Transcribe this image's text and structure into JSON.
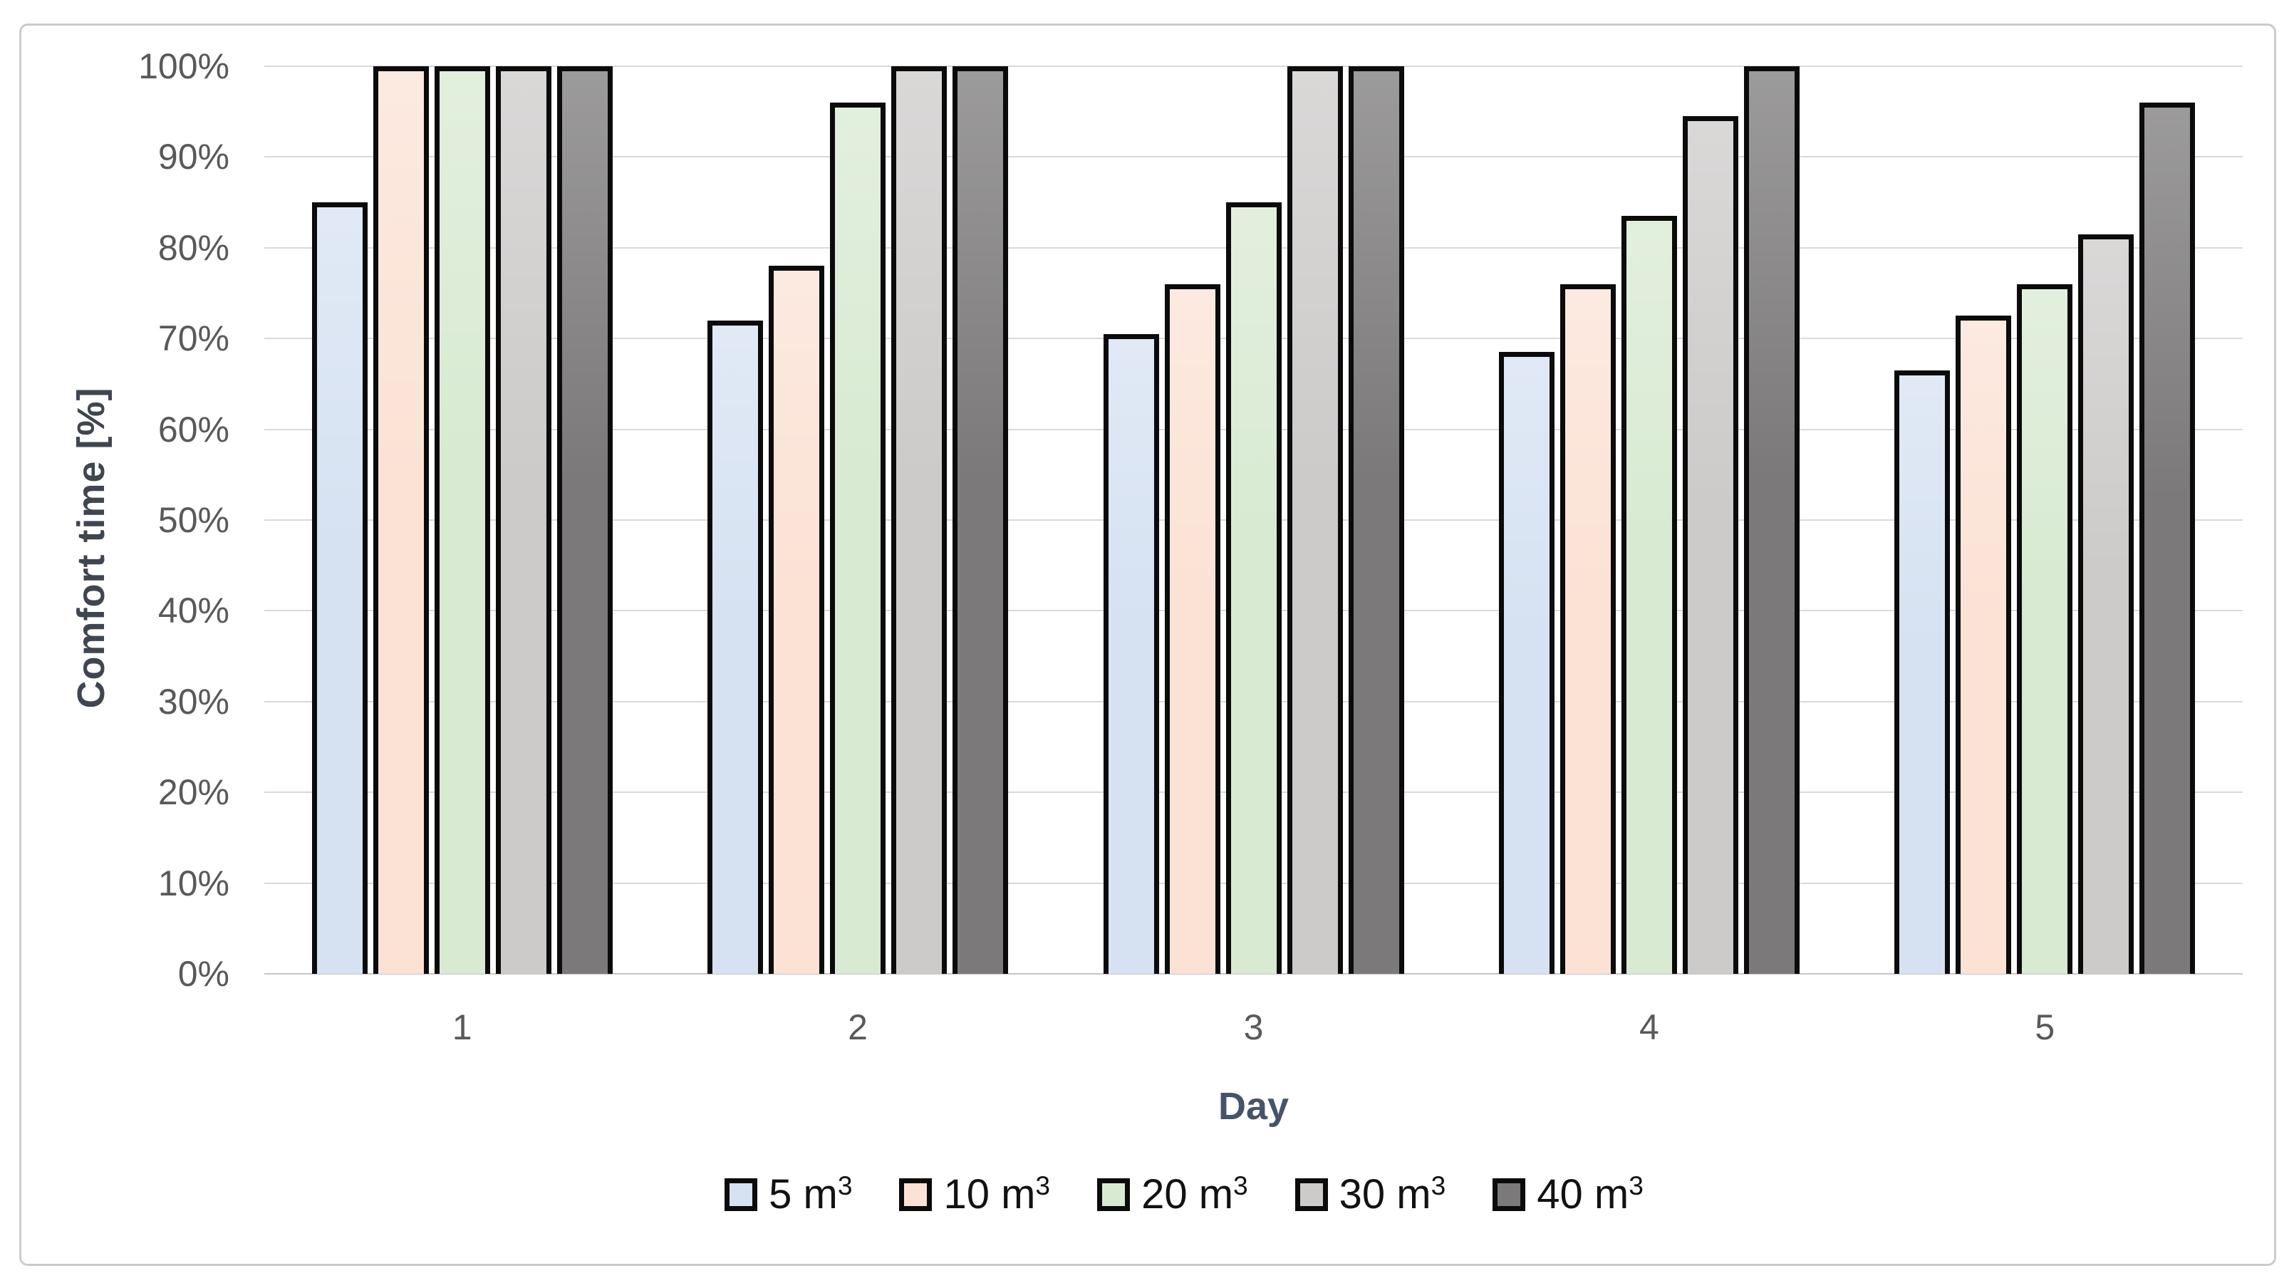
{
  "chart_data": {
    "type": "bar",
    "title": "",
    "xlabel": "Day",
    "ylabel": "Comfort time [%]",
    "categories": [
      "1",
      "2",
      "3",
      "4",
      "5"
    ],
    "series": [
      {
        "name": "5 m³",
        "color": "#D6E2F2",
        "values": [
          85,
          72,
          70.5,
          68.5,
          66.5
        ]
      },
      {
        "name": "10 m³",
        "color": "#FBE2D5",
        "values": [
          100,
          78,
          76,
          76,
          72.5
        ]
      },
      {
        "name": "20 m³",
        "color": "#D8EAD2",
        "values": [
          100,
          96,
          85,
          83.5,
          76
        ]
      },
      {
        "name": "30 m³",
        "color": "#CDCBCA",
        "values": [
          100,
          100,
          100,
          94.5,
          81.5
        ]
      },
      {
        "name": "40 m³",
        "color": "#7B7979",
        "values": [
          100,
          100,
          100,
          100,
          96
        ]
      }
    ],
    "yticks": [
      "0%",
      "10%",
      "20%",
      "30%",
      "40%",
      "50%",
      "60%",
      "70%",
      "80%",
      "90%",
      "100%"
    ],
    "ylim": [
      0,
      100
    ],
    "grid": true,
    "legend_position": "bottom",
    "bar_border_color": "#0B0B0B"
  },
  "legend": {
    "items": [
      {
        "base": "5 m",
        "sup": "3",
        "color": "#D6E2F2"
      },
      {
        "base": "10 m",
        "sup": "3",
        "color": "#FBE2D5"
      },
      {
        "base": "20 m",
        "sup": "3",
        "color": "#D8EAD2"
      },
      {
        "base": "30 m",
        "sup": "3",
        "color": "#CDCBCA"
      },
      {
        "base": "40 m",
        "sup": "3",
        "color": "#7B7979"
      }
    ]
  }
}
